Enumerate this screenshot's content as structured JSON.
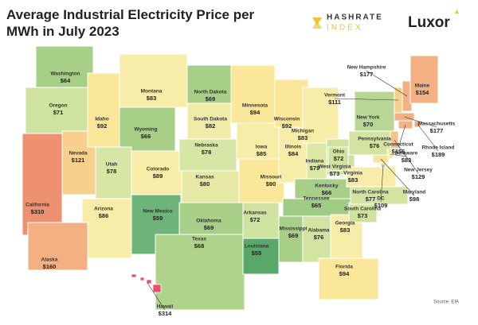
{
  "title": "Average Industrial Electricity Price per MWh in July 2023",
  "logos": [
    "HASHRATE",
    "INDEX",
    "Luxor"
  ],
  "source": "Source: EIA",
  "states": [
    {
      "name": "Washington",
      "value": 64,
      "value_label": "$64",
      "color": "#a8cf88"
    },
    {
      "name": "Oregon",
      "value": 71,
      "value_label": "$71",
      "color": "#cfe2a0"
    },
    {
      "name": "California",
      "value": 310,
      "value_label": "$310",
      "color": "#ee9170"
    },
    {
      "name": "Nevada",
      "value": 121,
      "value_label": "$121",
      "color": "#f7d08e"
    },
    {
      "name": "Idaho",
      "value": 92,
      "value_label": "$92",
      "color": "#fbe79a"
    },
    {
      "name": "Montana",
      "value": 83,
      "value_label": "$83",
      "color": "#f8eda8"
    },
    {
      "name": "Wyoming",
      "value": 66,
      "value_label": "$66",
      "color": "#a8cf88"
    },
    {
      "name": "Utah",
      "value": 78,
      "value_label": "$78",
      "color": "#d6e6a4"
    },
    {
      "name": "Arizona",
      "value": 86,
      "value_label": "$86",
      "color": "#f8eda8"
    },
    {
      "name": "Colorado",
      "value": 89,
      "value_label": "$89",
      "color": "#f8eda8"
    },
    {
      "name": "New Mexico",
      "value": 59,
      "value_label": "$59",
      "color": "#6cb47a"
    },
    {
      "name": "North Dakota",
      "value": 69,
      "value_label": "$69",
      "color": "#a8cf88"
    },
    {
      "name": "South Dakota",
      "value": 82,
      "value_label": "$82",
      "color": "#f0eca8"
    },
    {
      "name": "Nebraska",
      "value": 78,
      "value_label": "$78",
      "color": "#d6e6a4"
    },
    {
      "name": "Kansas",
      "value": 80,
      "value_label": "$80",
      "color": "#e6e9a6"
    },
    {
      "name": "Oklahoma",
      "value": 69,
      "value_label": "$69",
      "color": "#a8cf88"
    },
    {
      "name": "Texas",
      "value": 68,
      "value_label": "$68",
      "color": "#b0d38c"
    },
    {
      "name": "Minnesota",
      "value": 94,
      "value_label": "$94",
      "color": "#fbe79a"
    },
    {
      "name": "Iowa",
      "value": 85,
      "value_label": "$85",
      "color": "#f8eda8"
    },
    {
      "name": "Missouri",
      "value": 90,
      "value_label": "$90",
      "color": "#fbe79a"
    },
    {
      "name": "Arkansas",
      "value": 72,
      "value_label": "$72",
      "color": "#cfe2a0"
    },
    {
      "name": "Louisiana",
      "value": 55,
      "value_label": "$55",
      "color": "#58a86a"
    },
    {
      "name": "Wisconsin",
      "value": 92,
      "value_label": "$92",
      "color": "#fbe79a"
    },
    {
      "name": "Illinois",
      "value": 84,
      "value_label": "$84",
      "color": "#f8eda8"
    },
    {
      "name": "Michigan",
      "value": 83,
      "value_label": "$83",
      "color": "#f8eda8"
    },
    {
      "name": "Indiana",
      "value": 79,
      "value_label": "$79",
      "color": "#dde8a5"
    },
    {
      "name": "Ohio",
      "value": 72,
      "value_label": "$72",
      "color": "#cfe2a0"
    },
    {
      "name": "Kentucky",
      "value": 66,
      "value_label": "$66",
      "color": "#a8cf88"
    },
    {
      "name": "Tennessee",
      "value": 65,
      "value_label": "$65",
      "color": "#a0cb84"
    },
    {
      "name": "Mississippi",
      "value": 69,
      "value_label": "$69",
      "color": "#a8cf88"
    },
    {
      "name": "Alabama",
      "value": 76,
      "value_label": "$76",
      "color": "#d3e4a2"
    },
    {
      "name": "Georgia",
      "value": 83,
      "value_label": "$83",
      "color": "#f8eda8"
    },
    {
      "name": "Florida",
      "value": 94,
      "value_label": "$94",
      "color": "#fbe79a"
    },
    {
      "name": "South Carolina",
      "value": 73,
      "value_label": "$73",
      "color": "#cfe2a0"
    },
    {
      "name": "North Carolina",
      "value": 77,
      "value_label": "$77",
      "color": "#d3e4a2"
    },
    {
      "name": "Virginia",
      "value": 83,
      "value_label": "$83",
      "color": "#f8eda8"
    },
    {
      "name": "West Virginia",
      "value": 73,
      "value_label": "$73",
      "color": "#cfe2a0"
    },
    {
      "name": "Pennsylvania",
      "value": 76,
      "value_label": "$76",
      "color": "#d3e4a2"
    },
    {
      "name": "New York",
      "value": 70,
      "value_label": "$70",
      "color": "#b8d794"
    },
    {
      "name": "Vermont",
      "value": 111,
      "value_label": "$111",
      "color": "#f7d08e"
    },
    {
      "name": "New Hampshire",
      "value": 177,
      "value_label": "$177",
      "color": "#f3b183"
    },
    {
      "name": "Maine",
      "value": 154,
      "value_label": "$154",
      "color": "#f3b183"
    },
    {
      "name": "Massachusetts",
      "value": 177,
      "value_label": "$177",
      "color": "#f3b183"
    },
    {
      "name": "Rhode Island",
      "value": 189,
      "value_label": "$189",
      "color": "#f0a47c"
    },
    {
      "name": "Connecticut",
      "value": 156,
      "value_label": "$156",
      "color": "#f3b183"
    },
    {
      "name": "New Jersey",
      "value": 129,
      "value_label": "$129",
      "color": "#f5c288"
    },
    {
      "name": "Delaware",
      "value": 83,
      "value_label": "$83",
      "color": "#f8eda8"
    },
    {
      "name": "Maryland",
      "value": 98,
      "value_label": "$98",
      "color": "#fbe29a"
    },
    {
      "name": "DC",
      "value": 109,
      "value_label": "$109",
      "color": "#f7d08e"
    },
    {
      "name": "Alaska",
      "value": 160,
      "value_label": "$160",
      "color": "#f3b183"
    },
    {
      "name": "Hawaii",
      "value": 314,
      "value_label": "$314",
      "color": "#e8506a"
    }
  ]
}
